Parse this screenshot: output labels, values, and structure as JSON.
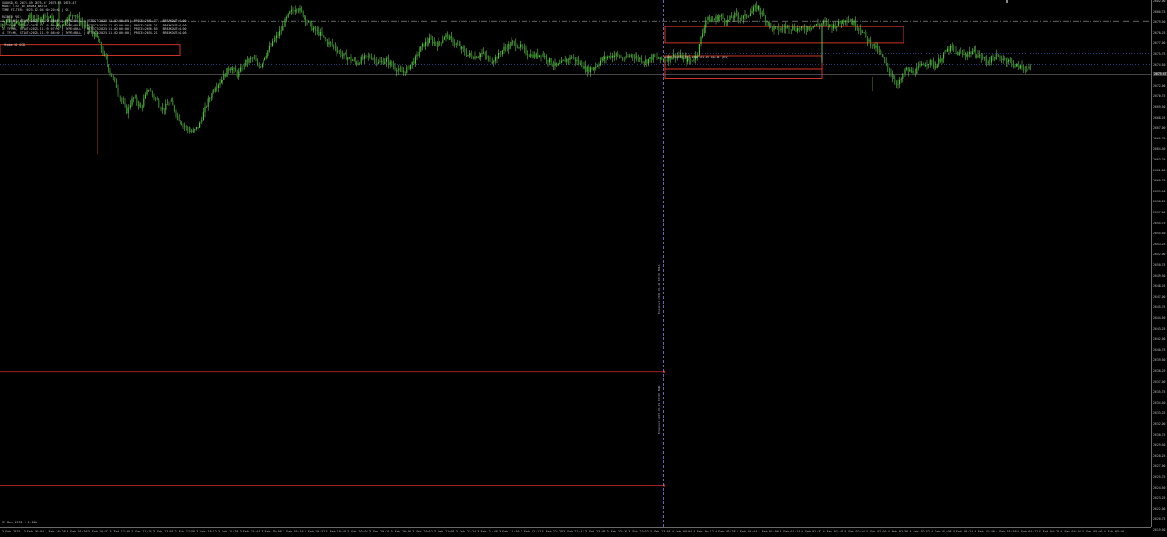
{
  "info_lines": [
    "XAUUSD,M1  2675.49 2675.47 2675.45 2675.47",
    "MODE: TEST_BT_BROKE_BATCH",
    "TIME FILTER: 2025.02.04 00:20:00 | OK",
    "",
    "RAIDED POI:",
    "1. TF=M5, START=2025.11.29 05:00 | TYPE=BULL | DETECT=2025.11.02 06:00 | PRICE=2661.77 | BREAKOUT=0.00",
    "2. TF=M5, START=2025.11.29 06:00 | TYPE=BULL | DETECT=2025.11.02 06:00 | PRICE=2658.21 | BREAKOUT=0.00",
    "3. TF=M5, START=2025.11.29 07:00 | TYPE=BULL | DETECT=2025.11.02 06:00 | PRICE=2656.85 | BREAKOUT=0.00",
    "4. TF=M5, START=2025.11.29 08:00 | TYPE=BULL | DETECT=2025.11.02 06:00 | PRICE=2654.21 | BREAKOUT=0.00"
  ],
  "ssl_label": "Stake EQ SCD",
  "zone_label": "ORDER BLOCK TDS 2025.01.29 00:00 (M1)",
  "footer_text": "31 Dec 1970 - 1.00%",
  "price_ticks": [
    "2682.00",
    "2680.75",
    "2679.50",
    "2678.25",
    "2677.00",
    "2675.75",
    "2674.50",
    "2673.25",
    "2672.00",
    "2670.75",
    "2669.50",
    "2668.25",
    "2667.00",
    "2665.75",
    "2664.50",
    "2663.25",
    "2662.00",
    "2660.75",
    "2659.50",
    "2658.25",
    "2657.00",
    "2655.75",
    "2654.50",
    "2653.25",
    "2652.00",
    "2650.75",
    "2649.50",
    "2648.25",
    "2647.00",
    "2645.75",
    "2644.50",
    "2643.25",
    "2642.00",
    "2640.75",
    "2639.50",
    "2638.25",
    "2637.00",
    "2635.75",
    "2634.50",
    "2633.25",
    "2632.00",
    "2630.75",
    "2629.50",
    "2628.25",
    "2627.00",
    "2625.75",
    "2624.50",
    "2623.25",
    "2622.00",
    "2620.75",
    "2619.50"
  ],
  "current_price_label": "2675.47",
  "time_ticks": [
    "3 Feb 2025",
    "3 Feb 16:04",
    "3 Feb 16:28",
    "3 Feb 16:36",
    "3 Feb 16:52",
    "3 Feb 17:08",
    "3 Feb 17:24",
    "3 Feb 17:40",
    "3 Feb 17:56",
    "3 Feb 18:12",
    "3 Feb 18:28",
    "3 Feb 18:44",
    "3 Feb 19:00",
    "3 Feb 19:16",
    "3 Feb 19:32",
    "3 Feb 19:48",
    "3 Feb 20:04",
    "3 Feb 20:20",
    "3 Feb 20:36",
    "3 Feb 20:52",
    "3 Feb 21:08",
    "3 Feb 21:24",
    "3 Feb 21:40",
    "3 Feb 21:56",
    "3 Feb 22:12",
    "3 Feb 22:28",
    "3 Feb 22:44",
    "3 Feb 23:00",
    "3 Feb 23:16",
    "3 Feb 23:32",
    "3 Feb 23:48",
    "4 Feb 00:04",
    "4 Feb 00:12",
    "4 Feb 00:28",
    "4 Feb 00:44",
    "4 Feb 01:00",
    "4 Feb 01:16",
    "4 Feb 01:32",
    "4 Feb 01:48",
    "4 Feb 02:04",
    "4 Feb 02:20",
    "4 Feb 02:36",
    "4 Feb 02:52",
    "4 Feb 03:08",
    "4 Feb 03:24",
    "4 Feb 03:40",
    "4 Feb 03:56",
    "4 Feb 04:12",
    "4 Feb 04:28",
    "4 Feb 04:44",
    "4 Feb 05:00",
    "4 Feb 05:16"
  ],
  "vertical_annotations": [
    "Breakout:2025.01.29 00:00 BULL",
    "Breakout:2025.01.29 00:00 BULL"
  ],
  "colors": {
    "candle_up": "#4ec63a",
    "candle_wick": "#7fe060",
    "zone_border": "#e03a2a",
    "level_line": "#d42a2a",
    "separator": "#8a7ad8",
    "dashdot": "#9aa8a0",
    "blue_dot": "#4060c8"
  },
  "chart_data": {
    "type": "candlestick",
    "symbol": "XAUUSD",
    "timeframe": "M1",
    "last_price": 2675.47,
    "y_range": [
      2619.5,
      2683.0
    ],
    "path_prices": [
      2679.8,
      2680.6,
      2680.2,
      2679.9,
      2681.0,
      2680.4,
      2681.2,
      2680.6,
      2679.8,
      2680.7,
      2681.4,
      2680.2,
      2679.4,
      2678.6,
      2676.4,
      2674.0,
      2671.8,
      2669.6,
      2671.2,
      2670.0,
      2672.4,
      2671.0,
      2669.8,
      2670.8,
      2668.8,
      2667.6,
      2667.0,
      2668.2,
      2670.8,
      2672.6,
      2673.6,
      2675.0,
      2674.0,
      2675.4,
      2676.0,
      2675.0,
      2676.8,
      2678.2,
      2679.6,
      2681.4,
      2682.2,
      2681.0,
      2679.6,
      2679.0,
      2678.0,
      2677.4,
      2676.4,
      2676.0,
      2675.4,
      2676.0,
      2676.2,
      2675.4,
      2675.8,
      2675.0,
      2674.2,
      2674.8,
      2676.0,
      2677.6,
      2678.2,
      2677.6,
      2678.8,
      2678.0,
      2677.2,
      2676.4,
      2676.2,
      2676.6,
      2675.6,
      2676.2,
      2677.2,
      2677.8,
      2677.4,
      2676.6,
      2676.2,
      2676.6,
      2675.6,
      2675.0,
      2675.6,
      2676.2,
      2675.4,
      2674.6,
      2674.8,
      2675.8,
      2676.2,
      2676.4,
      2675.8,
      2676.4,
      2676.0,
      2675.6,
      2676.2,
      2675.8,
      2676.0,
      2676.4,
      2676.0,
      2675.6,
      2676.6,
      2680.6,
      2680.6,
      2681.0,
      2680.4,
      2681.2,
      2680.8,
      2681.4,
      2682.2,
      2680.8,
      2679.6,
      2679.4,
      2679.8,
      2679.6,
      2679.4,
      2679.8,
      2680.0,
      2680.2,
      2679.8,
      2680.2,
      2680.8,
      2680.2,
      2679.4,
      2678.0,
      2677.2,
      2675.8,
      2674.0,
      2672.8,
      2674.6,
      2674.2,
      2675.0,
      2675.6,
      2675.0,
      2676.4,
      2677.2,
      2676.6,
      2676.4,
      2676.8,
      2676.2,
      2675.6,
      2676.2,
      2676.0,
      2675.6,
      2675.0,
      2674.8,
      2674.6
    ]
  }
}
